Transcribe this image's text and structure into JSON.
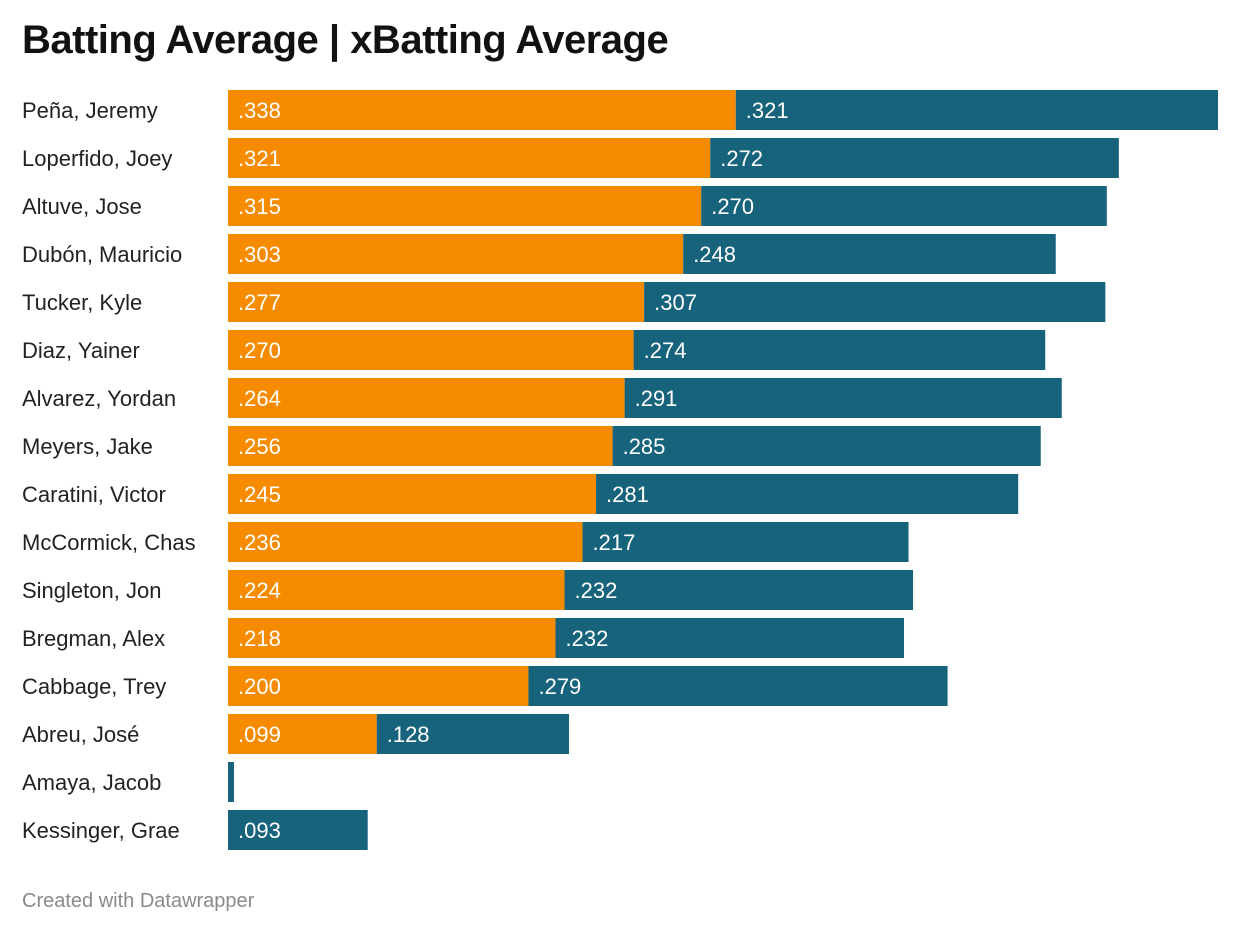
{
  "title": "Batting Average | xBatting Average",
  "footer": "Created with Datawrapper",
  "colors": {
    "ba": "#f68b00",
    "xba": "#17637b",
    "label_text": "#222222",
    "value_text": "#ffffff"
  },
  "chart_data": {
    "type": "bar",
    "orientation": "horizontal",
    "stacked": true,
    "title": "Batting Average | xBatting Average",
    "categories": [
      "Peña, Jeremy",
      "Loperfido, Joey",
      "Altuve, Jose",
      "Dubón, Mauricio",
      "Tucker, Kyle",
      "Diaz, Yainer",
      "Alvarez, Yordan",
      "Meyers, Jake",
      "Caratini, Victor",
      "McCormick, Chas",
      "Singleton, Jon",
      "Bregman, Alex",
      "Cabbage, Trey",
      "Abreu, José",
      "Amaya, Jacob",
      "Kessinger, Grae"
    ],
    "series": [
      {
        "values": [
          0.338,
          0.321,
          0.315,
          0.303,
          0.277,
          0.27,
          0.264,
          0.256,
          0.245,
          0.236,
          0.224,
          0.218,
          0.2,
          0.099,
          0.0,
          0.0
        ],
        "labels": [
          ".338",
          ".321",
          ".315",
          ".303",
          ".277",
          ".270",
          ".264",
          ".256",
          ".245",
          ".236",
          ".224",
          ".218",
          ".200",
          ".099",
          "",
          ""
        ]
      },
      {
        "values": [
          0.321,
          0.272,
          0.27,
          0.248,
          0.307,
          0.274,
          0.291,
          0.285,
          0.281,
          0.217,
          0.232,
          0.232,
          0.279,
          0.128,
          0.004,
          0.093
        ],
        "labels": [
          ".321",
          ".272",
          ".270",
          ".248",
          ".307",
          ".274",
          ".291",
          ".285",
          ".281",
          ".217",
          ".232",
          ".232",
          ".279",
          ".128",
          "",
          ".093"
        ]
      }
    ],
    "xlim": [
      0,
      0.659
    ],
    "grid": false,
    "legend": "none"
  }
}
